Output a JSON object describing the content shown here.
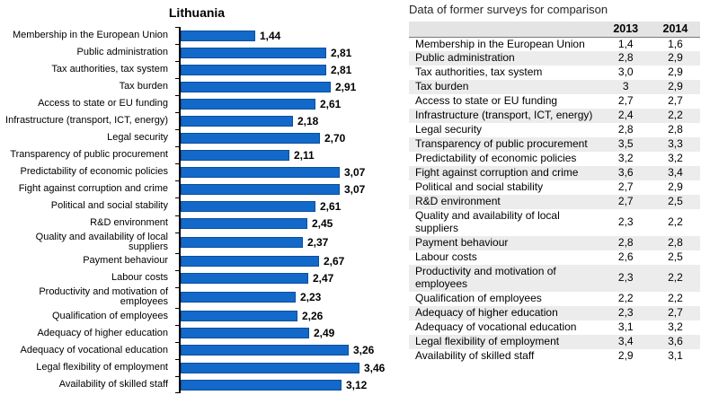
{
  "chart_data": [
    {
      "type": "bar",
      "orientation": "horizontal",
      "title": "Lithuania",
      "categories": [
        "Membership in the European Union",
        "Public administration",
        "Tax authorities, tax system",
        "Tax burden",
        "Access to state or EU funding",
        "Infrastructure (transport, ICT, energy)",
        "Legal security",
        "Transparency of public procurement",
        "Predictability of economic policies",
        "Fight against corruption and crime",
        "Political and social stability",
        "R&D environment",
        "Quality and availability of local suppliers",
        "Payment behaviour",
        "Labour costs",
        "Productivity and motivation of employees",
        "Qualification of employees",
        "Adequacy of higher education",
        "Adequacy of vocational education",
        "Legal flexibility of employment",
        "Availability of skilled staff"
      ],
      "values": [
        1.44,
        2.81,
        2.81,
        2.91,
        2.61,
        2.18,
        2.7,
        2.11,
        3.07,
        3.07,
        2.61,
        2.45,
        2.37,
        2.67,
        2.47,
        2.23,
        2.26,
        2.49,
        3.26,
        3.46,
        3.12
      ],
      "value_labels": [
        "1,44",
        "2,81",
        "2,81",
        "2,91",
        "2,61",
        "2,18",
        "2,70",
        "2,11",
        "3,07",
        "3,07",
        "2,61",
        "2,45",
        "2,37",
        "2,67",
        "2,47",
        "2,23",
        "2,26",
        "2,49",
        "3,26",
        "3,46",
        "3,12"
      ],
      "xlim": [
        0,
        4
      ],
      "grid": false,
      "legend": false,
      "bar_color": "#1269c9"
    },
    {
      "type": "table",
      "title": "Data of former surveys for comparison",
      "columns": [
        "",
        "2013",
        "2014"
      ],
      "rows": [
        [
          "Membership in the European Union",
          "1,4",
          "1,6"
        ],
        [
          "Public administration",
          "2,8",
          "2,9"
        ],
        [
          "Tax authorities, tax system",
          "3,0",
          "2,9"
        ],
        [
          "Tax burden",
          "3",
          "2,9"
        ],
        [
          "Access to state or EU funding",
          "2,7",
          "2,7"
        ],
        [
          "Infrastructure (transport, ICT, energy)",
          "2,4",
          "2,2"
        ],
        [
          "Legal security",
          "2,8",
          "2,8"
        ],
        [
          "Transparency of public procurement",
          "3,5",
          "3,3"
        ],
        [
          "Predictability of economic policies",
          "3,2",
          "3,2"
        ],
        [
          "Fight against corruption and crime",
          "3,6",
          "3,4"
        ],
        [
          "Political and social stability",
          "2,7",
          "2,9"
        ],
        [
          "R&D environment",
          "2,7",
          "2,5"
        ],
        [
          "Quality and availability of local suppliers",
          "2,3",
          "2,2"
        ],
        [
          "Payment behaviour",
          "2,8",
          "2,8"
        ],
        [
          "Labour costs",
          "2,6",
          "2,5"
        ],
        [
          "Productivity and motivation of employees",
          "2,3",
          "2,2"
        ],
        [
          "Qualification of employees",
          "2,2",
          "2,2"
        ],
        [
          "Adequacy of higher education",
          "2,3",
          "2,7"
        ],
        [
          "Adequacy of vocational education",
          "3,1",
          "3,2"
        ],
        [
          "Legal flexibility of employment",
          "3,4",
          "3,6"
        ],
        [
          "Availability of skilled staff",
          "2,9",
          "3,1"
        ]
      ]
    }
  ]
}
